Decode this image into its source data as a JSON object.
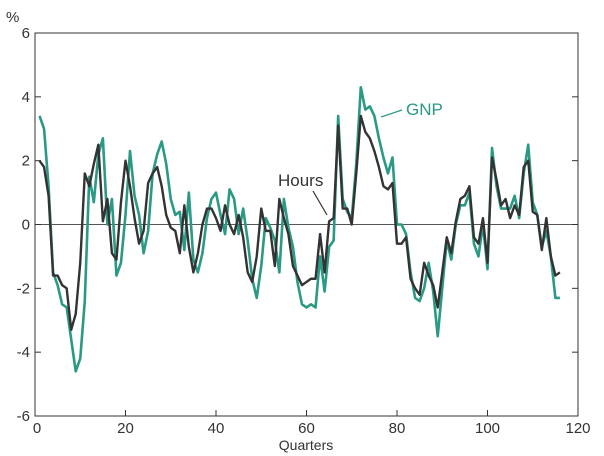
{
  "chart_data": {
    "type": "line",
    "title": "",
    "xlabel": "Quarters",
    "ylabel": "%",
    "xlim": [
      0,
      120
    ],
    "ylim": [
      -6,
      6
    ],
    "x_ticks": [
      0,
      20,
      40,
      60,
      80,
      100,
      120
    ],
    "y_ticks": [
      -6,
      -4,
      -2,
      0,
      2,
      4,
      6
    ],
    "zero_line": true,
    "grid": false,
    "legend": "inline-labels",
    "series": [
      {
        "name": "GNP",
        "color": "#2a9a85",
        "values": [
          3.4,
          3.0,
          1.2,
          -1.5,
          -1.9,
          -2.5,
          -2.6,
          -3.6,
          -4.6,
          -4.2,
          -2.4,
          1.5,
          0.7,
          2.2,
          2.7,
          0.0,
          0.8,
          -1.6,
          -1.2,
          0.3,
          2.3,
          0.9,
          0.3,
          -0.9,
          -0.2,
          1.6,
          2.2,
          2.6,
          1.9,
          0.8,
          0.3,
          0.4,
          -0.8,
          1.0,
          -1.1,
          -1.5,
          -0.9,
          0.2,
          0.8,
          1.0,
          0.3,
          -0.3,
          1.1,
          0.8,
          -0.3,
          0.5,
          -0.5,
          -1.7,
          -2.3,
          -1.3,
          0.2,
          -0.1,
          -0.5,
          -1.5,
          0.8,
          -0.1,
          -0.7,
          -1.8,
          -2.5,
          -2.6,
          -2.5,
          -2.6,
          -1.0,
          -2.1,
          -0.7,
          -0.5,
          3.4,
          0.8,
          0.4,
          0.2,
          1.9,
          4.3,
          3.6,
          3.7,
          3.4,
          2.7,
          2.1,
          1.6,
          2.1,
          0.0,
          0.0,
          -0.3,
          -1.5,
          -2.3,
          -2.4,
          -2.0,
          -1.2,
          -2.1,
          -3.5,
          -2.0,
          -0.5,
          -1.1,
          0.0,
          0.6,
          0.6,
          1.0,
          -0.6,
          -1.0,
          0.0,
          -1.4,
          2.4,
          1.2,
          0.5,
          0.5,
          0.5,
          0.9,
          0.2,
          1.6,
          2.5,
          0.7,
          0.3,
          -0.7,
          -0.2,
          -1.0,
          -2.3,
          -2.3
        ]
      },
      {
        "name": "Hours",
        "color": "#333333",
        "values": [
          2.0,
          1.8,
          0.9,
          -1.6,
          -1.6,
          -1.9,
          -2.0,
          -3.3,
          -2.8,
          -1.2,
          1.6,
          1.2,
          1.9,
          2.5,
          0.1,
          0.8,
          -0.9,
          -1.1,
          0.7,
          2.0,
          1.2,
          0.2,
          -0.6,
          -0.2,
          1.3,
          1.6,
          1.8,
          1.2,
          0.3,
          -0.1,
          -0.2,
          -0.9,
          0.6,
          -0.7,
          -1.5,
          -0.9,
          0.0,
          0.5,
          0.5,
          0.2,
          -0.2,
          0.6,
          0.0,
          -0.3,
          0.3,
          -0.4,
          -1.5,
          -1.8,
          -1.0,
          0.5,
          -0.2,
          -0.2,
          -1.3,
          0.8,
          0.2,
          -0.3,
          -1.3,
          -1.6,
          -1.9,
          -1.8,
          -1.7,
          -1.7,
          -0.3,
          -1.5,
          0.1,
          0.2,
          3.1,
          0.5,
          0.5,
          0.0,
          1.6,
          3.4,
          2.9,
          2.7,
          2.3,
          1.8,
          1.2,
          1.1,
          1.3,
          -0.6,
          -0.6,
          -0.4,
          -1.7,
          -2.0,
          -2.2,
          -1.2,
          -1.6,
          -1.9,
          -2.6,
          -1.5,
          -0.4,
          -0.9,
          0.1,
          0.8,
          0.9,
          1.2,
          -0.4,
          -0.6,
          0.2,
          -1.2,
          2.1,
          1.4,
          0.6,
          0.8,
          0.2,
          0.6,
          0.3,
          1.8,
          2.0,
          0.4,
          0.3,
          -0.8,
          0.2,
          -1.0,
          -1.6,
          -1.5
        ]
      }
    ]
  }
}
